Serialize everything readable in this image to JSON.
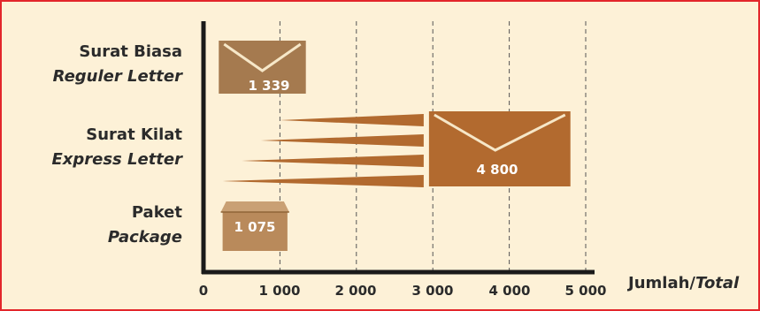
{
  "chart_data": {
    "type": "bar",
    "orientation": "horizontal",
    "categories": [
      {
        "name": "Surat Biasa",
        "name_en": "Reguler Letter"
      },
      {
        "name": "Surat Kilat",
        "name_en": "Express Letter"
      },
      {
        "name": "Paket",
        "name_en": "Package"
      }
    ],
    "values": [
      1339,
      4800,
      1075
    ],
    "value_labels": [
      "1 339",
      "4 800",
      "1 075"
    ],
    "icons": [
      "envelope-icon",
      "envelope-speed-icon",
      "box-icon"
    ],
    "x_ticks": [
      0,
      1000,
      2000,
      3000,
      4000,
      5000
    ],
    "x_tick_labels": [
      "0",
      "1 000",
      "2 000",
      "3 000",
      "4 000",
      "5 000"
    ],
    "xlim": [
      0,
      5000
    ],
    "xlabel": "Jumlah/",
    "xlabel_en": "Total",
    "grid": "vertical dashed",
    "colors": {
      "envelope_light": "#a57a4f",
      "envelope_dark": "#b26a2f",
      "box": "#b98a5b",
      "frame": "#e3262b",
      "background": "#fdf1d7"
    }
  }
}
